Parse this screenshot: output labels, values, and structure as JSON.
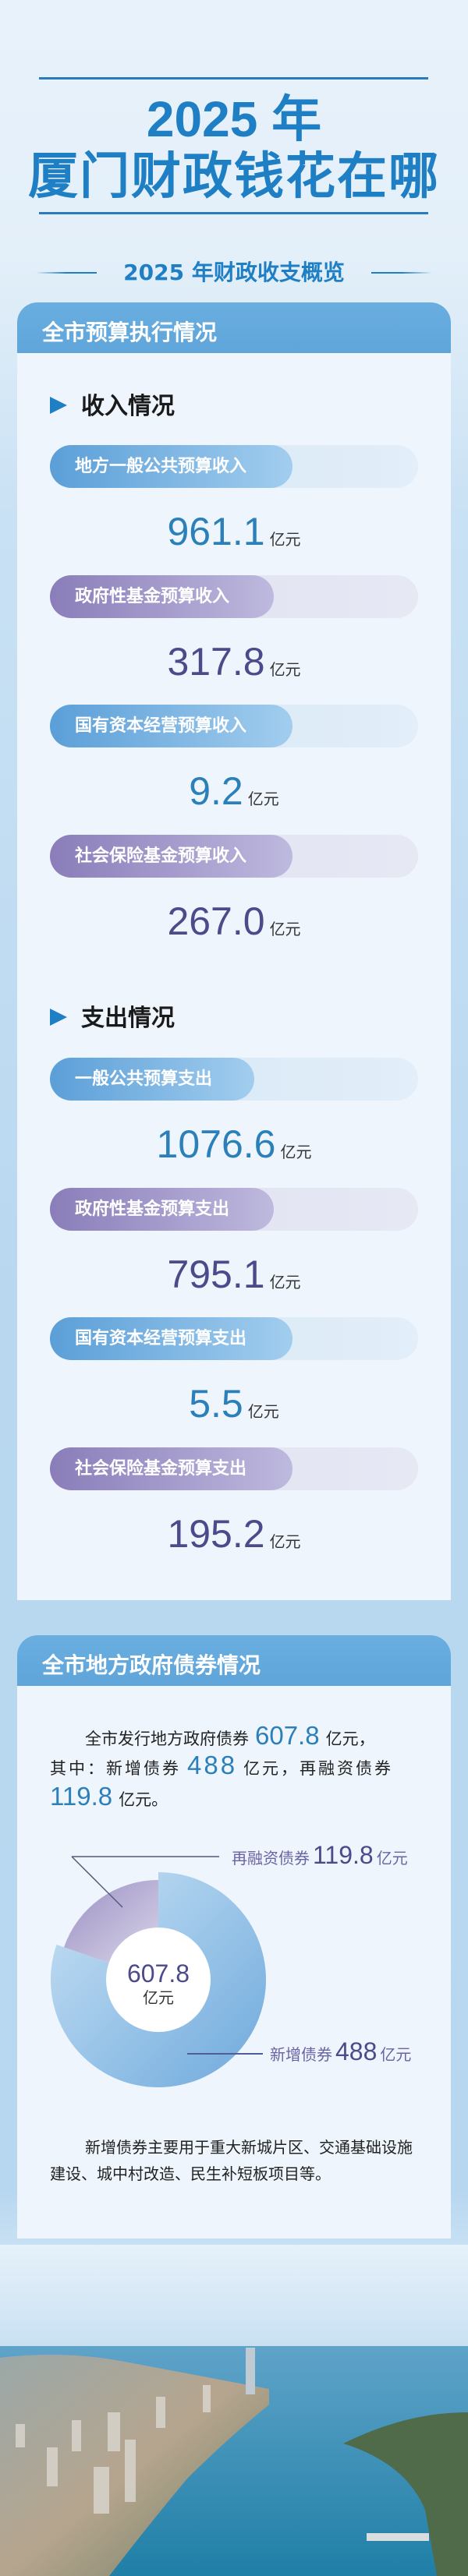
{
  "title": {
    "line1": "2025 年",
    "line2": "厦门财政钱花在哪"
  },
  "subtitle": "2025 年财政收支概览",
  "colors": {
    "title_blue": "#1f7fc4",
    "header_blue": "#62a8dc",
    "value_blue": "#2b80b9",
    "value_purple": "#4c4a8a",
    "card_bg": "#eef5fc"
  },
  "budget": {
    "header": "全市预算执行情况",
    "income": {
      "heading": "收入情况",
      "items": [
        {
          "label": "地方一般公共预算收入",
          "value": "961.1",
          "unit": "亿元",
          "color": "blue"
        },
        {
          "label": "政府性基金预算收入",
          "value": "317.8",
          "unit": "亿元",
          "color": "purple"
        },
        {
          "label": "国有资本经营预算收入",
          "value": "9.2",
          "unit": "亿元",
          "color": "blue"
        },
        {
          "label": "社会保险基金预算收入",
          "value": "267.0",
          "unit": "亿元",
          "color": "purple"
        }
      ]
    },
    "expense": {
      "heading": "支出情况",
      "items": [
        {
          "label": "一般公共预算支出",
          "value": "1076.6",
          "unit": "亿元",
          "color": "blue"
        },
        {
          "label": "政府性基金预算支出",
          "value": "795.1",
          "unit": "亿元",
          "color": "purple"
        },
        {
          "label": "国有资本经营预算支出",
          "value": "5.5",
          "unit": "亿元",
          "color": "blue"
        },
        {
          "label": "社会保险基金预算支出",
          "value": "195.2",
          "unit": "亿元",
          "color": "purple"
        }
      ]
    }
  },
  "debt": {
    "header": "全市地方政府债券情况",
    "summary": {
      "p1": "全市发行地方政府债券",
      "total": "607.8",
      "p2": "亿元，",
      "p3": "其中：新增债券",
      "new": "488",
      "p4": "亿元，再融资债券",
      "refi": "119.8",
      "p5": "亿元。"
    },
    "note": "新增债券主要用于重大新城片区、交通基础设施建设、城中村改造、民生补短板项目等。"
  },
  "chart_data": {
    "type": "pie",
    "donut": true,
    "center_value": "607.8",
    "center_unit": "亿元",
    "categories": [
      "新增债券",
      "再融资债券"
    ],
    "values": [
      488,
      119.8
    ],
    "unit": "亿元",
    "colors": [
      "#8fc1e8",
      "#a89cc8"
    ],
    "labels": [
      {
        "name": "新增债券",
        "value": "488",
        "unit": "亿元"
      },
      {
        "name": "再融资债券",
        "value": "119.8",
        "unit": "亿元"
      }
    ]
  }
}
